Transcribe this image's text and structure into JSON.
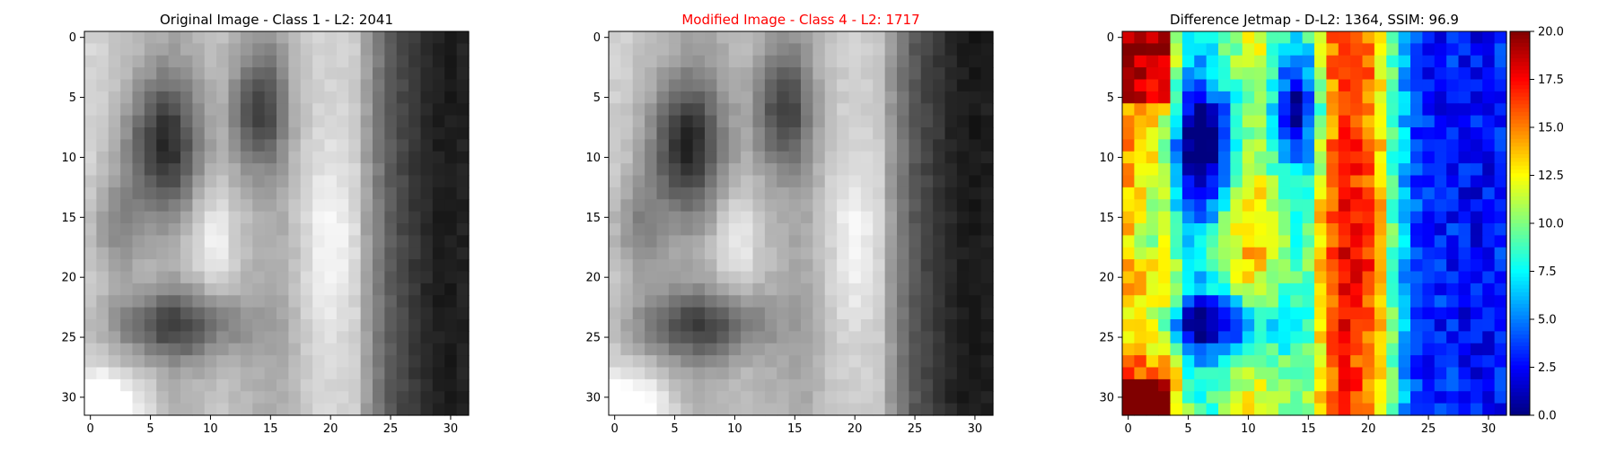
{
  "chart_data": [
    {
      "type": "heatmap",
      "title": "Original Image - Class 1 - L2: 2041",
      "title_color": "#000000",
      "colormap": "gray",
      "size": 32,
      "xlim": [
        -0.5,
        31.5
      ],
      "ylim": [
        31.5,
        -0.5
      ],
      "x_ticks": [
        0,
        5,
        10,
        15,
        20,
        25,
        30
      ],
      "y_ticks": [
        0,
        5,
        10,
        15,
        20,
        25,
        30
      ],
      "column_profile": [
        0.84,
        0.83,
        0.8,
        0.78,
        0.76,
        0.74,
        0.7,
        0.69,
        0.7,
        0.72,
        0.75,
        0.77,
        0.74,
        0.72,
        0.7,
        0.67,
        0.68,
        0.74,
        0.79,
        0.82,
        0.83,
        0.82,
        0.8,
        0.62,
        0.48,
        0.36,
        0.28,
        0.22,
        0.16,
        0.12,
        0.11,
        0.13
      ],
      "grid": false
    },
    {
      "type": "heatmap",
      "title": "Modified Image - Class 4 - L2: 1717",
      "title_color": "#ff0000",
      "colormap": "gray",
      "size": 32,
      "xlim": [
        -0.5,
        31.5
      ],
      "ylim": [
        31.5,
        -0.5
      ],
      "x_ticks": [
        0,
        5,
        10,
        15,
        20,
        25,
        30
      ],
      "y_ticks": [
        0,
        5,
        10,
        15,
        20,
        25,
        30
      ],
      "column_profile": [
        0.82,
        0.81,
        0.78,
        0.76,
        0.74,
        0.72,
        0.69,
        0.68,
        0.69,
        0.71,
        0.73,
        0.75,
        0.72,
        0.71,
        0.69,
        0.66,
        0.67,
        0.72,
        0.77,
        0.8,
        0.81,
        0.8,
        0.78,
        0.6,
        0.46,
        0.34,
        0.27,
        0.21,
        0.15,
        0.11,
        0.1,
        0.12
      ],
      "grid": false
    },
    {
      "type": "heatmap",
      "title": "Difference Jetmap - D-L2: 1364, SSIM: 96.9",
      "title_color": "#000000",
      "colormap": "jet",
      "size": 32,
      "xlim": [
        -0.5,
        31.5
      ],
      "ylim": [
        31.5,
        -0.5
      ],
      "x_ticks": [
        0,
        5,
        10,
        15,
        20,
        25,
        30
      ],
      "y_ticks": [
        0,
        5,
        10,
        15,
        20,
        25,
        30
      ],
      "colorbar": {
        "vmin": 0,
        "vmax": 20,
        "ticks": [
          "0.0",
          "2.5",
          "5.0",
          "7.5",
          "10.0",
          "12.5",
          "15.0",
          "17.5",
          "20.0"
        ]
      },
      "column_profile": [
        15,
        15,
        15,
        15,
        12,
        9,
        8,
        9,
        10,
        11,
        12,
        12,
        11,
        10,
        9,
        10,
        13,
        16,
        17,
        16,
        15,
        13,
        9,
        6,
        4,
        3,
        3,
        3,
        2.5,
        2.5,
        2.5,
        3
      ],
      "grid": false
    }
  ]
}
